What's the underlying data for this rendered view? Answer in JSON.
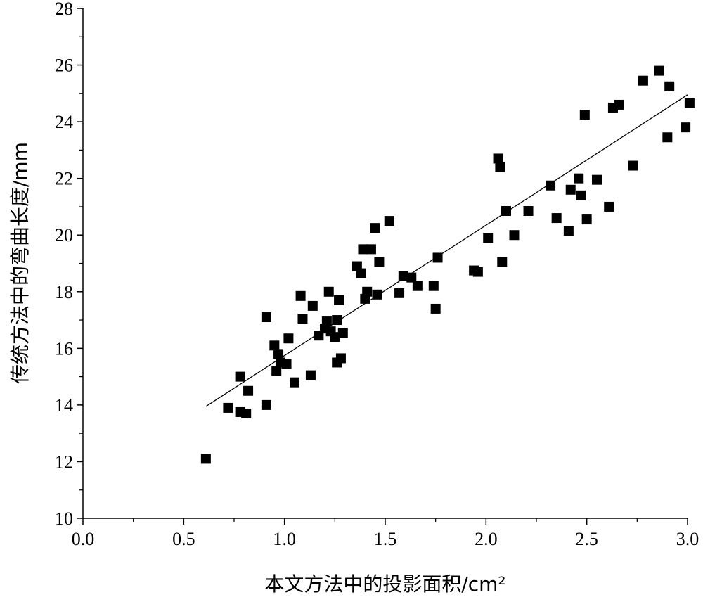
{
  "chart_data": {
    "type": "scatter",
    "xlabel": "本文方法中的投影面积/cm²",
    "ylabel": "传统方法中的弯曲长度/mm",
    "xlim": [
      0.0,
      3.0
    ],
    "ylim": [
      10,
      28
    ],
    "xticks": [
      "0.0",
      "0.5",
      "1.0",
      "1.5",
      "2.0",
      "2.5",
      "3.0"
    ],
    "yticks": [
      "10",
      "12",
      "14",
      "16",
      "18",
      "20",
      "22",
      "24",
      "26",
      "28"
    ],
    "grid": false,
    "marker": "square",
    "marker_color": "#000000",
    "fit_line": {
      "x": [
        0.61,
        3.0
      ],
      "y": [
        13.95,
        24.95
      ]
    },
    "points": [
      [
        0.61,
        12.1
      ],
      [
        0.72,
        13.9
      ],
      [
        0.78,
        13.75
      ],
      [
        0.78,
        15.0
      ],
      [
        0.81,
        13.7
      ],
      [
        0.82,
        14.5
      ],
      [
        0.91,
        14.0
      ],
      [
        0.91,
        17.1
      ],
      [
        0.95,
        16.1
      ],
      [
        0.96,
        15.2
      ],
      [
        0.97,
        15.8
      ],
      [
        0.98,
        15.5
      ],
      [
        1.01,
        15.45
      ],
      [
        1.02,
        16.35
      ],
      [
        1.05,
        14.8
      ],
      [
        1.08,
        17.85
      ],
      [
        1.09,
        17.05
      ],
      [
        1.13,
        15.05
      ],
      [
        1.14,
        17.5
      ],
      [
        1.17,
        16.45
      ],
      [
        1.2,
        16.7
      ],
      [
        1.21,
        16.95
      ],
      [
        1.22,
        18.0
      ],
      [
        1.23,
        16.6
      ],
      [
        1.25,
        16.4
      ],
      [
        1.26,
        15.5
      ],
      [
        1.26,
        17.0
      ],
      [
        1.27,
        17.7
      ],
      [
        1.28,
        15.65
      ],
      [
        1.29,
        16.55
      ],
      [
        1.36,
        18.9
      ],
      [
        1.38,
        18.65
      ],
      [
        1.39,
        19.5
      ],
      [
        1.4,
        17.75
      ],
      [
        1.41,
        18.0
      ],
      [
        1.43,
        19.5
      ],
      [
        1.45,
        20.25
      ],
      [
        1.46,
        17.9
      ],
      [
        1.47,
        19.05
      ],
      [
        1.52,
        20.5
      ],
      [
        1.57,
        17.95
      ],
      [
        1.59,
        18.55
      ],
      [
        1.63,
        18.5
      ],
      [
        1.66,
        18.2
      ],
      [
        1.74,
        18.2
      ],
      [
        1.75,
        17.4
      ],
      [
        1.76,
        19.2
      ],
      [
        1.94,
        18.75
      ],
      [
        1.96,
        18.7
      ],
      [
        2.01,
        19.9
      ],
      [
        2.06,
        22.7
      ],
      [
        2.07,
        22.4
      ],
      [
        2.08,
        19.05
      ],
      [
        2.1,
        20.85
      ],
      [
        2.14,
        20.0
      ],
      [
        2.21,
        20.85
      ],
      [
        2.32,
        21.75
      ],
      [
        2.35,
        20.6
      ],
      [
        2.41,
        20.15
      ],
      [
        2.42,
        21.6
      ],
      [
        2.46,
        22.0
      ],
      [
        2.47,
        21.4
      ],
      [
        2.49,
        24.25
      ],
      [
        2.5,
        20.55
      ],
      [
        2.55,
        21.95
      ],
      [
        2.61,
        21.0
      ],
      [
        2.63,
        24.5
      ],
      [
        2.66,
        24.6
      ],
      [
        2.73,
        22.45
      ],
      [
        2.78,
        25.45
      ],
      [
        2.86,
        25.8
      ],
      [
        2.9,
        23.45
      ],
      [
        2.91,
        25.25
      ],
      [
        2.99,
        23.8
      ],
      [
        3.01,
        24.65
      ]
    ]
  }
}
